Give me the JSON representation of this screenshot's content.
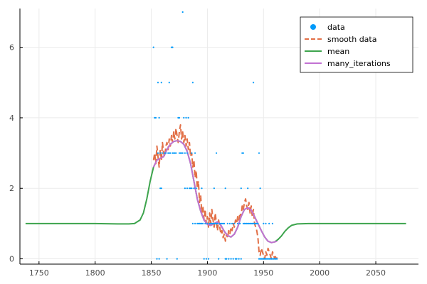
{
  "chart_data": {
    "type": "line",
    "title": "",
    "xlabel": "",
    "ylabel": "",
    "xlim": [
      1733,
      2088
    ],
    "ylim": [
      -0.15,
      7.1
    ],
    "xticks": [
      1750,
      1800,
      1850,
      1900,
      1950,
      2000,
      2050
    ],
    "yticks": [
      0,
      2,
      4,
      6
    ],
    "grid": true,
    "legend_position": "top-right",
    "colors": {
      "data": "#009AFA",
      "smooth": "#E26F46",
      "mean": "#3DA44D",
      "many": "#C271D2",
      "axis": "#000000",
      "grid": "#EBEBEB"
    },
    "series": [
      {
        "name": "data",
        "kind": "scatter",
        "points": [
          [
            1852,
            6
          ],
          [
            1853,
            4
          ],
          [
            1854,
            4
          ],
          [
            1855,
            0
          ],
          [
            1856,
            5
          ],
          [
            1856,
            3
          ],
          [
            1857,
            0
          ],
          [
            1857,
            4
          ],
          [
            1858,
            3
          ],
          [
            1858,
            2
          ],
          [
            1859,
            5
          ],
          [
            1859,
            2
          ],
          [
            1860,
            3
          ],
          [
            1862,
            3
          ],
          [
            1863,
            3
          ],
          [
            1864,
            0
          ],
          [
            1865,
            3
          ],
          [
            1866,
            5
          ],
          [
            1866,
            3
          ],
          [
            1867,
            3
          ],
          [
            1868,
            6
          ],
          [
            1869,
            6
          ],
          [
            1869,
            3
          ],
          [
            1870,
            3
          ],
          [
            1871,
            3
          ],
          [
            1872,
            3
          ],
          [
            1873,
            0
          ],
          [
            1874,
            4
          ],
          [
            1875,
            4
          ],
          [
            1875,
            3
          ],
          [
            1876,
            3
          ],
          [
            1877,
            3
          ],
          [
            1878,
            7
          ],
          [
            1878,
            3
          ],
          [
            1879,
            4
          ],
          [
            1880,
            3
          ],
          [
            1880,
            2
          ],
          [
            1881,
            4
          ],
          [
            1882,
            3
          ],
          [
            1882,
            2
          ],
          [
            1883,
            4
          ],
          [
            1884,
            2
          ],
          [
            1885,
            2
          ],
          [
            1886,
            3
          ],
          [
            1886,
            2
          ],
          [
            1887,
            5
          ],
          [
            1887,
            1
          ],
          [
            1888,
            2
          ],
          [
            1889,
            3
          ],
          [
            1889,
            1
          ],
          [
            1890,
            2
          ],
          [
            1891,
            1
          ],
          [
            1892,
            1
          ],
          [
            1893,
            1
          ],
          [
            1894,
            1
          ],
          [
            1895,
            2
          ],
          [
            1895,
            1
          ],
          [
            1896,
            1
          ],
          [
            1897,
            0
          ],
          [
            1898,
            1
          ],
          [
            1899,
            0
          ],
          [
            1900,
            1
          ],
          [
            1901,
            0
          ],
          [
            1902,
            1
          ],
          [
            1903,
            1
          ],
          [
            1904,
            1
          ],
          [
            1905,
            1
          ],
          [
            1906,
            2
          ],
          [
            1906,
            1
          ],
          [
            1907,
            1
          ],
          [
            1908,
            3
          ],
          [
            1908,
            1
          ],
          [
            1909,
            1
          ],
          [
            1910,
            0
          ],
          [
            1911,
            1
          ],
          [
            1912,
            1
          ],
          [
            1913,
            1
          ],
          [
            1914,
            1
          ],
          [
            1915,
            1
          ],
          [
            1916,
            2
          ],
          [
            1916,
            0
          ],
          [
            1917,
            0
          ],
          [
            1918,
            1
          ],
          [
            1919,
            0
          ],
          [
            1920,
            1
          ],
          [
            1921,
            0
          ],
          [
            1922,
            1
          ],
          [
            1923,
            0
          ],
          [
            1924,
            1
          ],
          [
            1925,
            0
          ],
          [
            1926,
            0
          ],
          [
            1927,
            1
          ],
          [
            1928,
            0
          ],
          [
            1929,
            1
          ],
          [
            1930,
            2
          ],
          [
            1930,
            0
          ],
          [
            1931,
            3
          ],
          [
            1932,
            3
          ],
          [
            1932,
            1
          ],
          [
            1933,
            1
          ],
          [
            1934,
            1
          ],
          [
            1935,
            1
          ],
          [
            1936,
            2
          ],
          [
            1936,
            1
          ],
          [
            1937,
            1
          ],
          [
            1938,
            1
          ],
          [
            1939,
            1
          ],
          [
            1940,
            1
          ],
          [
            1941,
            5
          ],
          [
            1941,
            1
          ],
          [
            1942,
            1
          ],
          [
            1943,
            1
          ],
          [
            1944,
            1
          ],
          [
            1945,
            1
          ],
          [
            1946,
            3
          ],
          [
            1946,
            0
          ],
          [
            1947,
            2
          ],
          [
            1947,
            0
          ],
          [
            1948,
            0
          ],
          [
            1949,
            0
          ],
          [
            1950,
            1
          ],
          [
            1950,
            0
          ],
          [
            1951,
            0
          ],
          [
            1952,
            1
          ],
          [
            1952,
            0
          ],
          [
            1953,
            0
          ],
          [
            1954,
            0
          ],
          [
            1955,
            1
          ],
          [
            1955,
            0
          ],
          [
            1956,
            0
          ],
          [
            1957,
            0
          ],
          [
            1958,
            1
          ],
          [
            1958,
            0
          ],
          [
            1959,
            0
          ],
          [
            1960,
            0
          ],
          [
            1961,
            0
          ],
          [
            1962,
            0
          ]
        ]
      },
      {
        "name": "smooth data",
        "kind": "dashed-line",
        "x": [
          1852,
          1853,
          1854,
          1855,
          1856,
          1857,
          1858,
          1859,
          1860,
          1861,
          1862,
          1863,
          1864,
          1865,
          1866,
          1867,
          1868,
          1869,
          1870,
          1871,
          1872,
          1873,
          1874,
          1875,
          1876,
          1877,
          1878,
          1879,
          1880,
          1881,
          1882,
          1883,
          1884,
          1885,
          1886,
          1887,
          1888,
          1889,
          1890,
          1891,
          1892,
          1893,
          1894,
          1895,
          1896,
          1897,
          1898,
          1899,
          1900,
          1901,
          1902,
          1903,
          1904,
          1905,
          1906,
          1907,
          1908,
          1909,
          1910,
          1911,
          1912,
          1913,
          1914,
          1915,
          1916,
          1917,
          1918,
          1919,
          1920,
          1921,
          1922,
          1923,
          1924,
          1925,
          1926,
          1927,
          1928,
          1929,
          1930,
          1931,
          1932,
          1933,
          1934,
          1935,
          1936,
          1937,
          1938,
          1939,
          1940,
          1941,
          1942,
          1943,
          1944,
          1945,
          1946,
          1947,
          1948,
          1949,
          1950,
          1951,
          1952,
          1953,
          1954,
          1955,
          1956,
          1957,
          1958,
          1959,
          1960,
          1961,
          1962
        ],
        "y": [
          2.8,
          3.0,
          2.7,
          3.2,
          2.9,
          2.6,
          3.1,
          2.8,
          3.3,
          3.0,
          2.9,
          3.2,
          3.3,
          3.1,
          3.4,
          3.2,
          3.5,
          3.3,
          3.6,
          3.4,
          3.7,
          3.5,
          3.3,
          3.6,
          3.8,
          3.4,
          3.6,
          3.3,
          3.5,
          3.2,
          3.4,
          3.1,
          3.3,
          2.9,
          3.0,
          2.6,
          2.8,
          2.3,
          2.5,
          2.0,
          2.2,
          1.6,
          1.8,
          1.3,
          1.5,
          1.1,
          1.4,
          1.0,
          1.2,
          0.9,
          1.3,
          1.0,
          1.4,
          1.1,
          0.9,
          1.3,
          1.0,
          0.8,
          1.1,
          0.9,
          0.7,
          0.8,
          0.6,
          0.7,
          0.5,
          0.7,
          0.6,
          0.8,
          0.7,
          0.9,
          0.8,
          1.0,
          0.9,
          1.1,
          1.0,
          1.2,
          1.1,
          1.3,
          1.2,
          1.5,
          1.4,
          1.6,
          1.7,
          1.5,
          1.4,
          1.6,
          1.3,
          1.5,
          1.2,
          1.4,
          1.0,
          0.9,
          0.8,
          0.6,
          0.2,
          0.1,
          0.3,
          0.2,
          0.1,
          0.0,
          0.2,
          0.1,
          0.3,
          0.2,
          0.1,
          0.0,
          0.2,
          0.1,
          0.0,
          0.1,
          0.0
        ]
      },
      {
        "name": "mean",
        "kind": "line",
        "x": [
          1738,
          1760,
          1780,
          1800,
          1820,
          1830,
          1835,
          1840,
          1843,
          1846,
          1849,
          1852,
          1855,
          1858,
          1861,
          1864,
          1867,
          1870,
          1873,
          1876,
          1879,
          1882,
          1885,
          1888,
          1891,
          1894,
          1897,
          1900,
          1903,
          1906,
          1909,
          1912,
          1915,
          1918,
          1921,
          1924,
          1927,
          1930,
          1933,
          1936,
          1939,
          1942,
          1945,
          1948,
          1951,
          1954,
          1957,
          1960,
          1963,
          1966,
          1969,
          1972,
          1975,
          1980,
          1990,
          2000,
          2020,
          2040,
          2060,
          2077
        ],
        "y": [
          1.0,
          1.0,
          1.0,
          1.0,
          0.99,
          0.99,
          1.0,
          1.1,
          1.3,
          1.7,
          2.2,
          2.6,
          2.8,
          2.85,
          2.9,
          3.1,
          3.25,
          3.33,
          3.35,
          3.33,
          3.25,
          3.05,
          2.7,
          2.2,
          1.7,
          1.35,
          1.1,
          0.98,
          0.95,
          1.0,
          1.05,
          0.95,
          0.78,
          0.66,
          0.62,
          0.7,
          0.9,
          1.2,
          1.4,
          1.45,
          1.38,
          1.2,
          1.0,
          0.8,
          0.62,
          0.5,
          0.46,
          0.48,
          0.55,
          0.65,
          0.78,
          0.88,
          0.95,
          0.99,
          1.0,
          1.0,
          1.0,
          1.0,
          1.0,
          1.0
        ]
      },
      {
        "name": "many_iterations",
        "kind": "line",
        "x": [
          1852,
          1855,
          1858,
          1861,
          1864,
          1867,
          1870,
          1873,
          1876,
          1879,
          1882,
          1885,
          1888,
          1891,
          1894,
          1897,
          1900,
          1903,
          1906,
          1909,
          1912,
          1915,
          1918,
          1921,
          1924,
          1927,
          1930,
          1933,
          1936,
          1939,
          1942,
          1945,
          1948,
          1951,
          1954,
          1957,
          1960,
          1962
        ],
        "y": [
          2.6,
          2.8,
          2.85,
          2.9,
          3.1,
          3.25,
          3.33,
          3.35,
          3.33,
          3.25,
          3.05,
          2.7,
          2.2,
          1.7,
          1.35,
          1.1,
          0.98,
          0.95,
          1.0,
          1.05,
          0.95,
          0.78,
          0.66,
          0.62,
          0.7,
          0.9,
          1.2,
          1.4,
          1.45,
          1.38,
          1.2,
          1.0,
          0.8,
          0.62,
          0.5,
          0.46,
          0.48,
          0.5
        ]
      }
    ],
    "legend": [
      "data",
      "smooth data",
      "mean",
      "many_iterations"
    ]
  }
}
